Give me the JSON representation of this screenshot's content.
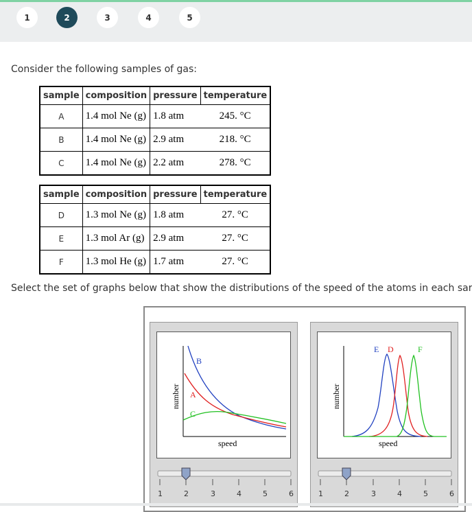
{
  "steps": [
    "1",
    "2",
    "3",
    "4",
    "5"
  ],
  "active_step": 2,
  "prompt_text": "Consider the following samples of gas:",
  "headers": [
    "sample",
    "composition",
    "pressure",
    "temperature"
  ],
  "table1": [
    {
      "sample": "A",
      "composition": "1.4 mol Ne (g)",
      "pressure": "1.8 atm",
      "temperature": "245. °C"
    },
    {
      "sample": "B",
      "composition": "1.4 mol Ne (g)",
      "pressure": "2.9 atm",
      "temperature": "218. °C"
    },
    {
      "sample": "C",
      "composition": "1.4 mol Ne (g)",
      "pressure": "2.2 atm",
      "temperature": "278. °C"
    }
  ],
  "table2": [
    {
      "sample": "D",
      "composition": "1.3 mol Ne (g)",
      "pressure": "1.8 atm",
      "temperature": "27. °C"
    },
    {
      "sample": "E",
      "composition": "1.3 mol Ar (g)",
      "pressure": "2.9 atm",
      "temperature": "27. °C"
    },
    {
      "sample": "F",
      "composition": "1.3 mol He (g)",
      "pressure": "1.7 atm",
      "temperature": "27. °C"
    }
  ],
  "instruction_text": "Select the set of graphs below that show the distributions of the speed of the atoms in each sar",
  "graph1": {
    "ylabel": "number",
    "xlabel": "speed",
    "curves": [
      {
        "label": "A",
        "color": "#e02020"
      },
      {
        "label": "B",
        "color": "#2040c0"
      },
      {
        "label": "C",
        "color": "#20c020"
      }
    ],
    "slider_ticks": [
      "1",
      "2",
      "3",
      "4",
      "5",
      "6"
    ],
    "slider_value": 2
  },
  "graph2": {
    "ylabel": "number",
    "xlabel": "speed",
    "curves": [
      {
        "label": "E",
        "color": "#2040c0"
      },
      {
        "label": "D",
        "color": "#e02020"
      },
      {
        "label": "F",
        "color": "#20c020"
      }
    ],
    "slider_ticks": [
      "1",
      "2",
      "3",
      "4",
      "5",
      "6"
    ],
    "slider_value": 2
  }
}
